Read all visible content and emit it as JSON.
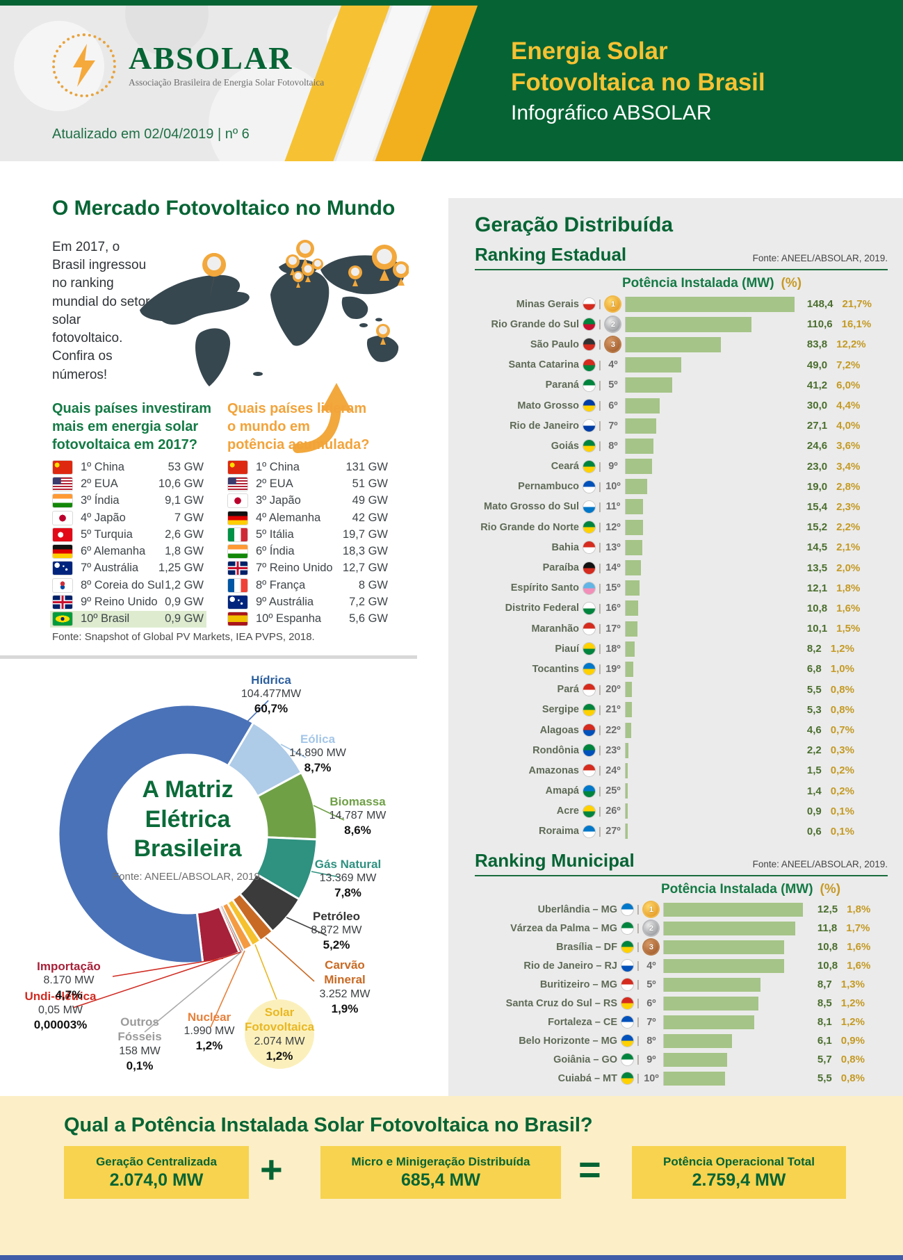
{
  "header": {
    "logo_name": "ABSOLAR",
    "logo_subtitle": "Associação Brasileira de Energia Solar Fotovoltaica",
    "updated": "Atualizado em 02/04/2019 | nº 6",
    "title_line1": "Energia Solar",
    "title_line2": "Fotovoltaica no Brasil",
    "subtitle": "Infográfico ABSOLAR",
    "accent_green": "#066434",
    "accent_yellow": "#f6c233"
  },
  "world_market": {
    "title": "O Mercado Fotovoltaico no Mundo",
    "intro": "Em 2017, o Brasil ingressou no ranking mundial do setor solar fotovoltaico. Confira os números!",
    "question_invest": "Quais países investiram mais em energia solar fotovoltaica em 2017?",
    "question_lead": "Quais países lideram o mundo em potência acumulada?",
    "source": "Fonte: Snapshot of Global PV Markets, IEA PVPS, 2018.",
    "invest_ranking": [
      {
        "rank": "1º",
        "country": "China",
        "value": "53 GW",
        "flag": "china",
        "highlight": false
      },
      {
        "rank": "2º",
        "country": "EUA",
        "value": "10,6 GW",
        "flag": "eua",
        "highlight": false
      },
      {
        "rank": "3º",
        "country": "Índia",
        "value": "9,1 GW",
        "flag": "india",
        "highlight": false
      },
      {
        "rank": "4º",
        "country": "Japão",
        "value": "7 GW",
        "flag": "japao",
        "highlight": false
      },
      {
        "rank": "5º",
        "country": "Turquia",
        "value": "2,6 GW",
        "flag": "turquia",
        "highlight": false
      },
      {
        "rank": "6º",
        "country": "Alemanha",
        "value": "1,8 GW",
        "flag": "alemanha",
        "highlight": false
      },
      {
        "rank": "7º",
        "country": "Austrália",
        "value": "1,25 GW",
        "flag": "australia",
        "highlight": false
      },
      {
        "rank": "8º",
        "country": "Coreia do Sul",
        "value": "1,2 GW",
        "flag": "coreia",
        "highlight": false
      },
      {
        "rank": "9º",
        "country": "Reino Unido",
        "value": "0,9 GW",
        "flag": "reino-unido",
        "highlight": false
      },
      {
        "rank": "10º",
        "country": "Brasil",
        "value": "0,9 GW",
        "flag": "brasil",
        "highlight": true
      }
    ],
    "accumulated_ranking": [
      {
        "rank": "1º",
        "country": "China",
        "value": "131 GW",
        "flag": "china",
        "highlight": false
      },
      {
        "rank": "2º",
        "country": "EUA",
        "value": "51 GW",
        "flag": "eua",
        "highlight": false
      },
      {
        "rank": "3º",
        "country": "Japão",
        "value": "49 GW",
        "flag": "japao",
        "highlight": false
      },
      {
        "rank": "4º",
        "country": "Alemanha",
        "value": "42 GW",
        "flag": "alemanha",
        "highlight": false
      },
      {
        "rank": "5º",
        "country": "Itália",
        "value": "19,7 GW",
        "flag": "italia",
        "highlight": false
      },
      {
        "rank": "6º",
        "country": "Índia",
        "value": "18,3 GW",
        "flag": "india",
        "highlight": false
      },
      {
        "rank": "7º",
        "country": "Reino Unido",
        "value": "12,7 GW",
        "flag": "reino-unido",
        "highlight": false
      },
      {
        "rank": "8º",
        "country": "França",
        "value": "8 GW",
        "flag": "franca",
        "highlight": false
      },
      {
        "rank": "9º",
        "country": "Austrália",
        "value": "7,2 GW",
        "flag": "australia",
        "highlight": false
      },
      {
        "rank": "10º",
        "country": "Espanha",
        "value": "5,6 GW",
        "flag": "espanha",
        "highlight": false
      }
    ]
  },
  "matrix": {
    "title_lines": [
      "A Matriz",
      "Elétrica",
      "Brasileira"
    ],
    "source": "Fonte: ANEEL/ABSOLAR, 2019.",
    "slices": [
      {
        "name": "Hídrica",
        "mw": "104.477MW",
        "pct": "60,7%",
        "color": "#4a72b8",
        "label_color": "#2c5f9e",
        "visual": 60.7
      },
      {
        "name": "Eólica",
        "mw": "14.890 MW",
        "pct": "8,7%",
        "color": "#aecbe8",
        "label_color": "#a3c6e8",
        "visual": 8.7
      },
      {
        "name": "Biomassa",
        "mw": "14.787 MW",
        "pct": "8,6%",
        "color": "#6fa046",
        "label_color": "#6fa046",
        "visual": 8.6
      },
      {
        "name": "Gás Natural",
        "mw": "13.369 MW",
        "pct": "7,8%",
        "color": "#2f9180",
        "label_color": "#2f9180",
        "visual": 7.8
      },
      {
        "name": "Petróleo",
        "mw": "8.872 MW",
        "pct": "5,2%",
        "color": "#3b3b3b",
        "label_color": "#333333",
        "visual": 5.2
      },
      {
        "name": "Carvão Mineral",
        "mw": "3.252 MW",
        "pct": "1,9%",
        "color": "#c96a24",
        "label_color": "#c96a24",
        "visual": 1.9
      },
      {
        "name": "Solar Fotovoltaica",
        "mw": "2.074 MW",
        "pct": "1,2%",
        "color": "#f6c12e",
        "label_color": "#e9b722",
        "visual": 1.2
      },
      {
        "name": "Nuclear",
        "mw": "1.990 MW",
        "pct": "1,2%",
        "color": "#f49b42",
        "label_color": "#e8813b",
        "visual": 1.2
      },
      {
        "name": "Outros Fósseis",
        "mw": "158 MW",
        "pct": "0,1%",
        "color": "#adadad",
        "label_color": "#9b9b9b",
        "visual": 0.3
      },
      {
        "name": "Undi-elétrica",
        "mw": "0,05 MW",
        "pct": "0,00003%",
        "color": "#d63a2f",
        "label_color": "#d02c23",
        "visual": 0.3
      },
      {
        "name": "Importação",
        "mw": "8.170 MW",
        "pct": "4,7%",
        "color": "#a62139",
        "label_color": "#a62139",
        "visual": 4.7
      }
    ]
  },
  "distributed": {
    "title": "Geração Distribuída",
    "col_mw": "Potência Instalada (MW)",
    "col_pct": "(%)",
    "state_ranking": {
      "title": "Ranking Estadual",
      "source": "Fonte: ANEEL/ABSOLAR, 2019.",
      "rows": [
        {
          "rank": 1,
          "name": "Minas Gerais",
          "value": 148.4,
          "value_label": "148,4",
          "pct_label": "21,7%",
          "flag": [
            "#ffffff",
            "#d52b1e"
          ]
        },
        {
          "rank": 2,
          "name": "Rio Grande do Sul",
          "value": 110.6,
          "value_label": "110,6",
          "pct_label": "16,1%",
          "flag": [
            "#00843d",
            "#c8102e"
          ]
        },
        {
          "rank": 3,
          "name": "São Paulo",
          "value": 83.8,
          "value_label": "83,8",
          "pct_label": "12,2%",
          "flag": [
            "#333333",
            "#d52b1e"
          ]
        },
        {
          "rank": 4,
          "name": "Santa Catarina",
          "value": 49.0,
          "value_label": "49,0",
          "pct_label": "7,2%",
          "flag": [
            "#d52b1e",
            "#00843d"
          ]
        },
        {
          "rank": 5,
          "name": "Paraná",
          "value": 41.2,
          "value_label": "41,2",
          "pct_label": "6,0%",
          "flag": [
            "#00843d",
            "#ffffff"
          ]
        },
        {
          "rank": 6,
          "name": "Mato Grosso",
          "value": 30.0,
          "value_label": "30,0",
          "pct_label": "4,4%",
          "flag": [
            "#003da5",
            "#ffd100"
          ]
        },
        {
          "rank": 7,
          "name": "Rio de Janeiro",
          "value": 27.1,
          "value_label": "27,1",
          "pct_label": "4,0%",
          "flag": [
            "#ffffff",
            "#003da5"
          ]
        },
        {
          "rank": 8,
          "name": "Goiás",
          "value": 24.6,
          "value_label": "24,6",
          "pct_label": "3,6%",
          "flag": [
            "#00843d",
            "#ffd100"
          ]
        },
        {
          "rank": 9,
          "name": "Ceará",
          "value": 23.0,
          "value_label": "23,0",
          "pct_label": "3,4%",
          "flag": [
            "#00843d",
            "#ffd100"
          ]
        },
        {
          "rank": 10,
          "name": "Pernambuco",
          "value": 19.0,
          "value_label": "19,0",
          "pct_label": "2,8%",
          "flag": [
            "#0051ba",
            "#ffffff"
          ]
        },
        {
          "rank": 11,
          "name": "Mato Grosso do Sul",
          "value": 15.4,
          "value_label": "15,4",
          "pct_label": "2,3%",
          "flag": [
            "#ffffff",
            "#0077c8"
          ]
        },
        {
          "rank": 12,
          "name": "Rio Grande do Norte",
          "value": 15.2,
          "value_label": "15,2",
          "pct_label": "2,2%",
          "flag": [
            "#00843d",
            "#ffd100"
          ]
        },
        {
          "rank": 13,
          "name": "Bahia",
          "value": 14.5,
          "value_label": "14,5",
          "pct_label": "2,1%",
          "flag": [
            "#d52b1e",
            "#ffffff"
          ]
        },
        {
          "rank": 14,
          "name": "Paraíba",
          "value": 13.5,
          "value_label": "13,5",
          "pct_label": "2,0%",
          "flag": [
            "#111111",
            "#d52b1e"
          ]
        },
        {
          "rank": 15,
          "name": "Espírito Santo",
          "value": 12.1,
          "value_label": "12,1",
          "pct_label": "1,8%",
          "flag": [
            "#62b5e5",
            "#f28fb8"
          ]
        },
        {
          "rank": 16,
          "name": "Distrito Federal",
          "value": 10.8,
          "value_label": "10,8",
          "pct_label": "1,6%",
          "flag": [
            "#ffffff",
            "#00843d"
          ]
        },
        {
          "rank": 17,
          "name": "Maranhão",
          "value": 10.1,
          "value_label": "10,1",
          "pct_label": "1,5%",
          "flag": [
            "#d52b1e",
            "#ffffff"
          ]
        },
        {
          "rank": 18,
          "name": "Piauí",
          "value": 8.2,
          "value_label": "8,2",
          "pct_label": "1,2%",
          "flag": [
            "#ffd100",
            "#00843d"
          ]
        },
        {
          "rank": 19,
          "name": "Tocantins",
          "value": 6.8,
          "value_label": "6,8",
          "pct_label": "1,0%",
          "flag": [
            "#0077c8",
            "#ffd100"
          ]
        },
        {
          "rank": 20,
          "name": "Pará",
          "value": 5.5,
          "value_label": "5,5",
          "pct_label": "0,8%",
          "flag": [
            "#d52b1e",
            "#ffffff"
          ]
        },
        {
          "rank": 21,
          "name": "Sergipe",
          "value": 5.3,
          "value_label": "5,3",
          "pct_label": "0,8%",
          "flag": [
            "#00843d",
            "#ffd100"
          ]
        },
        {
          "rank": 22,
          "name": "Alagoas",
          "value": 4.6,
          "value_label": "4,6",
          "pct_label": "0,7%",
          "flag": [
            "#d52b1e",
            "#0051ba"
          ]
        },
        {
          "rank": 23,
          "name": "Rondônia",
          "value": 2.2,
          "value_label": "2,2",
          "pct_label": "0,3%",
          "flag": [
            "#00843d",
            "#0051ba"
          ]
        },
        {
          "rank": 24,
          "name": "Amazonas",
          "value": 1.5,
          "value_label": "1,5",
          "pct_label": "0,2%",
          "flag": [
            "#d52b1e",
            "#ffffff"
          ]
        },
        {
          "rank": 25,
          "name": "Amapá",
          "value": 1.4,
          "value_label": "1,4",
          "pct_label": "0,2%",
          "flag": [
            "#0077c8",
            "#00843d"
          ]
        },
        {
          "rank": 26,
          "name": "Acre",
          "value": 0.9,
          "value_label": "0,9",
          "pct_label": "0,1%",
          "flag": [
            "#ffd100",
            "#00843d"
          ]
        },
        {
          "rank": 27,
          "name": "Roraima",
          "value": 0.6,
          "value_label": "0,6",
          "pct_label": "0,1%",
          "flag": [
            "#0077c8",
            "#ffffff"
          ]
        }
      ]
    },
    "municipal_ranking": {
      "title": "Ranking Municipal",
      "source": "Fonte: ANEEL/ABSOLAR, 2019.",
      "rows": [
        {
          "rank": 1,
          "name": "Uberlândia – MG",
          "value": 12.5,
          "value_label": "12,5",
          "pct_label": "1,8%",
          "flag": [
            "#0077c8",
            "#ffffff"
          ]
        },
        {
          "rank": 2,
          "name": "Várzea da Palma – MG",
          "value": 11.8,
          "value_label": "11,8",
          "pct_label": "1,7%",
          "flag": [
            "#00843d",
            "#ffffff"
          ]
        },
        {
          "rank": 3,
          "name": "Brasília – DF",
          "value": 10.8,
          "value_label": "10,8",
          "pct_label": "1,6%",
          "flag": [
            "#00843d",
            "#ffd100"
          ]
        },
        {
          "rank": 4,
          "name": "Rio de Janeiro – RJ",
          "value": 10.8,
          "value_label": "10,8",
          "pct_label": "1,6%",
          "flag": [
            "#ffffff",
            "#0051ba"
          ]
        },
        {
          "rank": 5,
          "name": "Buritizeiro – MG",
          "value": 8.7,
          "value_label": "8,7",
          "pct_label": "1,3%",
          "flag": [
            "#d52b1e",
            "#ffffff"
          ]
        },
        {
          "rank": 6,
          "name": "Santa Cruz do Sul – RS",
          "value": 8.5,
          "value_label": "8,5",
          "pct_label": "1,2%",
          "flag": [
            "#d52b1e",
            "#ffd100"
          ]
        },
        {
          "rank": 7,
          "name": "Fortaleza – CE",
          "value": 8.1,
          "value_label": "8,1",
          "pct_label": "1,2%",
          "flag": [
            "#0051ba",
            "#ffffff"
          ]
        },
        {
          "rank": 8,
          "name": "Belo Horizonte – MG",
          "value": 6.1,
          "value_label": "6,1",
          "pct_label": "0,9%",
          "flag": [
            "#0051ba",
            "#ffd100"
          ]
        },
        {
          "rank": 9,
          "name": "Goiânia – GO",
          "value": 5.7,
          "value_label": "5,7",
          "pct_label": "0,8%",
          "flag": [
            "#00843d",
            "#ffffff"
          ]
        },
        {
          "rank": 10,
          "name": "Cuiabá – MT",
          "value": 5.5,
          "value_label": "5,5",
          "pct_label": "0,8%",
          "flag": [
            "#00843d",
            "#ffd100"
          ]
        }
      ]
    }
  },
  "totals": {
    "title": "Qual a Potência Instalada Solar Fotovoltaica no Brasil?",
    "plus": "+",
    "equals": "=",
    "boxes": [
      {
        "label": "Geração Centralizada",
        "value": "2.074,0 MW"
      },
      {
        "label": "Micro e Minigeração Distribuída",
        "value": "685,4 MW"
      },
      {
        "label": "Potência Operacional Total",
        "value": "2.759,4 MW"
      }
    ]
  },
  "chart_data": [
    {
      "type": "bar",
      "title": "Geração Distribuída — Ranking Estadual",
      "xlabel": "Potência Instalada (MW)",
      "categories": [
        "Minas Gerais",
        "Rio Grande do Sul",
        "São Paulo",
        "Santa Catarina",
        "Paraná",
        "Mato Grosso",
        "Rio de Janeiro",
        "Goiás",
        "Ceará",
        "Pernambuco",
        "Mato Grosso do Sul",
        "Rio Grande do Norte",
        "Bahia",
        "Paraíba",
        "Espírito Santo",
        "Distrito Federal",
        "Maranhão",
        "Piauí",
        "Tocantins",
        "Pará",
        "Sergipe",
        "Alagoas",
        "Rondônia",
        "Amazonas",
        "Amapá",
        "Acre",
        "Roraima"
      ],
      "values": [
        148.4,
        110.6,
        83.8,
        49.0,
        41.2,
        30.0,
        27.1,
        24.6,
        23.0,
        19.0,
        15.4,
        15.2,
        14.5,
        13.5,
        12.1,
        10.8,
        10.1,
        8.2,
        6.8,
        5.5,
        5.3,
        4.6,
        2.2,
        1.5,
        1.4,
        0.9,
        0.6
      ],
      "percents": [
        21.7,
        16.1,
        12.2,
        7.2,
        6.0,
        4.4,
        4.0,
        3.6,
        3.4,
        2.8,
        2.3,
        2.2,
        2.1,
        2.0,
        1.8,
        1.6,
        1.5,
        1.2,
        1.0,
        0.8,
        0.8,
        0.7,
        0.3,
        0.2,
        0.2,
        0.1,
        0.1
      ],
      "source": "Fonte: ANEEL/ABSOLAR, 2019."
    },
    {
      "type": "bar",
      "title": "Geração Distribuída — Ranking Municipal",
      "xlabel": "Potência Instalada (MW)",
      "categories": [
        "Uberlândia – MG",
        "Várzea da Palma – MG",
        "Brasília – DF",
        "Rio de Janeiro – RJ",
        "Buritizeiro – MG",
        "Santa Cruz do Sul – RS",
        "Fortaleza – CE",
        "Belo Horizonte – MG",
        "Goiânia – GO",
        "Cuiabá – MT"
      ],
      "values": [
        12.5,
        11.8,
        10.8,
        10.8,
        8.7,
        8.5,
        8.1,
        6.1,
        5.7,
        5.5
      ],
      "percents": [
        1.8,
        1.7,
        1.6,
        1.6,
        1.3,
        1.2,
        1.2,
        0.9,
        0.8,
        0.8
      ],
      "source": "Fonte: ANEEL/ABSOLAR, 2019."
    },
    {
      "type": "pie",
      "title": "A Matriz Elétrica Brasileira",
      "labels": [
        "Hídrica",
        "Eólica",
        "Biomassa",
        "Gás Natural",
        "Petróleo",
        "Carvão Mineral",
        "Solar Fotovoltaica",
        "Nuclear",
        "Outros Fósseis",
        "Undi-elétrica",
        "Importação"
      ],
      "values_mw": [
        104477,
        14890,
        14787,
        13369,
        8872,
        3252,
        2074,
        1990,
        158,
        0.05,
        8170
      ],
      "percents": [
        60.7,
        8.7,
        8.6,
        7.8,
        5.2,
        1.9,
        1.2,
        1.2,
        0.1,
        3e-05,
        4.7
      ],
      "source": "Fonte: ANEEL/ABSOLAR, 2019."
    }
  ]
}
